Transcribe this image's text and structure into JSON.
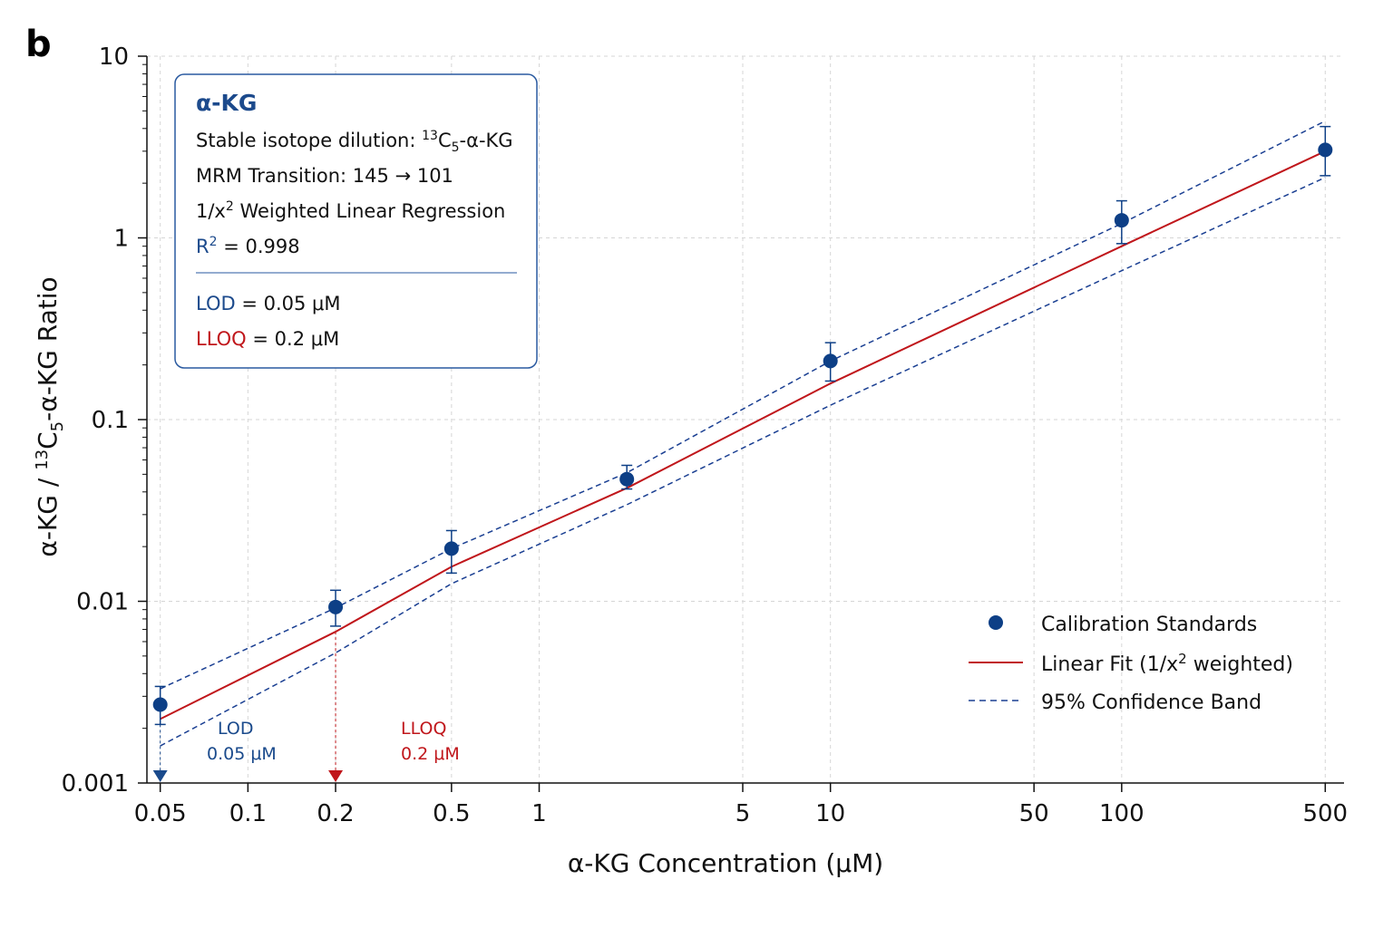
{
  "panel_label": "b",
  "info_box": {
    "title": "α-KG",
    "line1_prefix": "Stable isotope dilution: ",
    "line1_sup": "13",
    "line1_c": "C",
    "line1_sub": "5",
    "line1_suffix": "-α-KG",
    "line2": "MRM Transition: 145 → 101",
    "line3_a": "1/x",
    "line3_sup": "2",
    "line3_b": " Weighted Linear Regression",
    "r2_label": "R",
    "r2_sup": "2",
    "r2_value": " = 0.998",
    "lod_label": "LOD",
    "lod_value": " = 0.05 μM",
    "lloq_label": "LLOQ",
    "lloq_value": " = 0.2 μM"
  },
  "legend": {
    "calibration": "Calibration Standards",
    "fit_a": "Linear Fit (1/x",
    "fit_sup": "2",
    "fit_b": " weighted)",
    "band": "95% Confidence Band"
  },
  "lod_marker": {
    "label": "LOD",
    "value_label": "0.05 μM",
    "x": 0.05
  },
  "lloq_marker": {
    "label": "LLOQ",
    "value_label": "0.2 μM",
    "x": 0.2
  },
  "colors": {
    "points": "#0d3f86",
    "fit": "#c0161b",
    "band": "#1a3f92",
    "lod": "#1a4a8c",
    "lloq": "#c0161b",
    "grid": "#d6d6d6"
  },
  "chart_data": {
    "type": "scatter",
    "x_scale": "log",
    "y_scale": "log",
    "xlabel": "α-KG  Concentration (μM)",
    "ylabel_a": "α-KG / ",
    "ylabel_sup": "13",
    "ylabel_c": "C",
    "ylabel_sub": "5",
    "ylabel_b": "-α-KG Ratio",
    "xlim": [
      0.045,
      580
    ],
    "ylim": [
      0.001,
      10
    ],
    "x_ticks": [
      0.05,
      0.1,
      0.2,
      0.5,
      1,
      5,
      10,
      50,
      100,
      500
    ],
    "x_tick_labels": [
      "0.05",
      "0.1",
      "0.2",
      "0.5",
      "1",
      "5",
      "10",
      "50",
      "100",
      "500"
    ],
    "y_ticks": [
      0.001,
      0.01,
      0.1,
      1,
      10
    ],
    "y_tick_labels": [
      "0.001",
      "0.01",
      "0.1",
      "1",
      "10"
    ],
    "grid": true,
    "legend_position": "bottom-right",
    "series": [
      {
        "name": "Calibration Standards",
        "x": [
          0.05,
          0.2,
          0.5,
          2,
          10,
          100,
          500
        ],
        "y": [
          0.0027,
          0.0093,
          0.0195,
          0.047,
          0.21,
          1.25,
          3.05
        ],
        "y_err_low": [
          0.0021,
          0.0073,
          0.0143,
          0.0415,
          0.163,
          0.93,
          2.2
        ],
        "y_err_high": [
          0.0034,
          0.0115,
          0.0245,
          0.056,
          0.265,
          1.6,
          4.1
        ]
      },
      {
        "name": "Linear Fit (1/x² weighted)",
        "x": [
          0.05,
          0.2,
          0.5,
          2,
          10,
          100,
          500
        ],
        "y": [
          0.00225,
          0.0068,
          0.0155,
          0.042,
          0.158,
          0.9,
          3.0
        ]
      },
      {
        "name": "95% Confidence Band",
        "x": [
          0.05,
          0.2,
          0.5,
          2,
          10,
          100,
          500
        ],
        "y_upper": [
          0.0033,
          0.0092,
          0.0195,
          0.051,
          0.21,
          1.2,
          4.4
        ],
        "y_lower": [
          0.0016,
          0.0052,
          0.0125,
          0.034,
          0.12,
          0.66,
          2.15
        ]
      }
    ]
  }
}
